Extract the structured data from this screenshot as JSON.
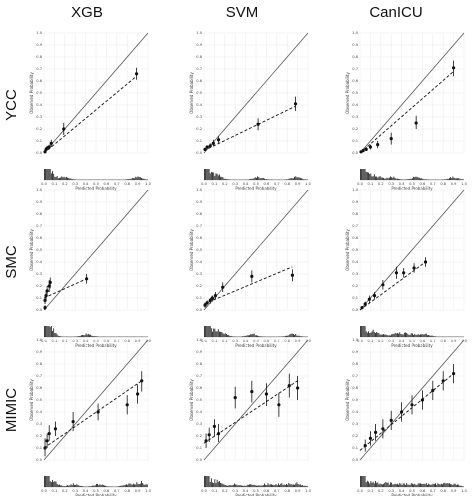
{
  "figure": {
    "columns": [
      "XGB",
      "SVM",
      "CanICU"
    ],
    "rows": [
      "YCC",
      "SMC",
      "MIMIC"
    ]
  },
  "chart_data": [
    {
      "type": "scatter",
      "model": "XGB",
      "cohort": "YCC",
      "xlabel": "Predicted Probability",
      "ylabel": "Observed Probability",
      "xlim": [
        0,
        1
      ],
      "ylim": [
        0,
        1
      ],
      "xticks": [
        "0.0",
        "0.1",
        "0.2",
        "0.3",
        "0.4",
        "0.5",
        "0.6",
        "0.7",
        "0.8",
        "0.9",
        "1.0"
      ],
      "yticks": [
        "0.0",
        "0.1",
        "0.2",
        "0.3",
        "0.4",
        "0.5",
        "0.6",
        "0.7",
        "0.8",
        "0.9",
        "1.0"
      ],
      "points": [
        {
          "x": 0.01,
          "y": 0.01,
          "lo": 0.0,
          "hi": 0.03
        },
        {
          "x": 0.02,
          "y": 0.03,
          "lo": 0.01,
          "hi": 0.05
        },
        {
          "x": 0.03,
          "y": 0.04,
          "lo": 0.02,
          "hi": 0.06
        },
        {
          "x": 0.05,
          "y": 0.05,
          "lo": 0.03,
          "hi": 0.07
        },
        {
          "x": 0.07,
          "y": 0.08,
          "lo": 0.05,
          "hi": 0.11
        },
        {
          "x": 0.19,
          "y": 0.2,
          "lo": 0.15,
          "hi": 0.25
        },
        {
          "x": 0.89,
          "y": 0.66,
          "lo": 0.61,
          "hi": 0.71
        }
      ],
      "fit_line": [
        [
          0.0,
          0.0
        ],
        [
          0.89,
          0.64
        ]
      ]
    },
    {
      "type": "scatter",
      "model": "SVM",
      "cohort": "YCC",
      "xlabel": "Predicted Probability",
      "ylabel": "Observed Probability",
      "xlim": [
        0,
        1
      ],
      "ylim": [
        0,
        1
      ],
      "xticks": [
        "0.0",
        "0.1",
        "0.2",
        "0.3",
        "0.4",
        "0.5",
        "0.6",
        "0.7",
        "0.8",
        "0.9",
        "1.0"
      ],
      "yticks": [
        "0.0",
        "0.1",
        "0.2",
        "0.3",
        "0.4",
        "0.5",
        "0.6",
        "0.7",
        "0.8",
        "0.9",
        "1.0"
      ],
      "points": [
        {
          "x": 0.01,
          "y": 0.03,
          "lo": 0.02,
          "hi": 0.04
        },
        {
          "x": 0.03,
          "y": 0.05,
          "lo": 0.04,
          "hi": 0.06
        },
        {
          "x": 0.06,
          "y": 0.06,
          "lo": 0.05,
          "hi": 0.08
        },
        {
          "x": 0.09,
          "y": 0.08,
          "lo": 0.06,
          "hi": 0.11
        },
        {
          "x": 0.14,
          "y": 0.11,
          "lo": 0.08,
          "hi": 0.14
        },
        {
          "x": 0.52,
          "y": 0.24,
          "lo": 0.19,
          "hi": 0.29
        },
        {
          "x": 0.88,
          "y": 0.41,
          "lo": 0.35,
          "hi": 0.47
        }
      ],
      "fit_line": [
        [
          0.0,
          0.02
        ],
        [
          0.88,
          0.39
        ]
      ]
    },
    {
      "type": "scatter",
      "model": "CanICU",
      "cohort": "YCC",
      "xlabel": "Predicted Probability",
      "ylabel": "Observed Probability",
      "xlim": [
        0,
        1
      ],
      "ylim": [
        0,
        1
      ],
      "xticks": [
        "0.0",
        "0.1",
        "0.2",
        "0.3",
        "0.4",
        "0.5",
        "0.6",
        "0.7",
        "0.8",
        "0.9",
        "1.0"
      ],
      "yticks": [
        "0.0",
        "0.1",
        "0.2",
        "0.3",
        "0.4",
        "0.5",
        "0.6",
        "0.7",
        "0.8",
        "0.9",
        "1.0"
      ],
      "points": [
        {
          "x": 0.01,
          "y": 0.01,
          "lo": 0.0,
          "hi": 0.02
        },
        {
          "x": 0.03,
          "y": 0.02,
          "lo": 0.01,
          "hi": 0.03
        },
        {
          "x": 0.06,
          "y": 0.03,
          "lo": 0.02,
          "hi": 0.05
        },
        {
          "x": 0.1,
          "y": 0.05,
          "lo": 0.03,
          "hi": 0.07
        },
        {
          "x": 0.17,
          "y": 0.07,
          "lo": 0.04,
          "hi": 0.1
        },
        {
          "x": 0.3,
          "y": 0.12,
          "lo": 0.07,
          "hi": 0.17
        },
        {
          "x": 0.54,
          "y": 0.25,
          "lo": 0.2,
          "hi": 0.31
        },
        {
          "x": 0.9,
          "y": 0.71,
          "lo": 0.64,
          "hi": 0.77
        }
      ],
      "fit_line": [
        [
          0.0,
          0.0
        ],
        [
          0.9,
          0.68
        ]
      ]
    },
    {
      "type": "scatter",
      "model": "XGB",
      "cohort": "SMC",
      "xlabel": "Predicted Probability",
      "ylabel": "Observed Probability",
      "xlim": [
        0,
        1
      ],
      "ylim": [
        0,
        1
      ],
      "xticks": [
        "0.0",
        "0.1",
        "0.2",
        "0.3",
        "0.4",
        "0.5",
        "0.6",
        "0.7",
        "0.8",
        "0.9",
        "1.0"
      ],
      "yticks": [
        "0.0",
        "0.1",
        "0.2",
        "0.3",
        "0.4",
        "0.5",
        "0.6",
        "0.7",
        "0.8",
        "0.9",
        "1.0"
      ],
      "points": [
        {
          "x": 0.01,
          "y": 0.02,
          "lo": 0.0,
          "hi": 0.04
        },
        {
          "x": 0.01,
          "y": 0.08,
          "lo": 0.05,
          "hi": 0.11
        },
        {
          "x": 0.02,
          "y": 0.12,
          "lo": 0.08,
          "hi": 0.16
        },
        {
          "x": 0.03,
          "y": 0.16,
          "lo": 0.12,
          "hi": 0.2
        },
        {
          "x": 0.05,
          "y": 0.2,
          "lo": 0.15,
          "hi": 0.25
        },
        {
          "x": 0.06,
          "y": 0.23,
          "lo": 0.18,
          "hi": 0.27
        },
        {
          "x": 0.41,
          "y": 0.26,
          "lo": 0.22,
          "hi": 0.3
        }
      ],
      "fit_line": [
        [
          0.0,
          0.1
        ],
        [
          0.41,
          0.26
        ]
      ]
    },
    {
      "type": "scatter",
      "model": "SVM",
      "cohort": "SMC",
      "xlabel": "Predicted Probability",
      "ylabel": "Observed Probability",
      "xlim": [
        0,
        1
      ],
      "ylim": [
        0,
        1
      ],
      "xticks": [
        "0.0",
        "0.1",
        "0.2",
        "0.3",
        "0.4",
        "0.5",
        "0.6",
        "0.7",
        "0.8",
        "0.9",
        "1.0"
      ],
      "yticks": [
        "0.0",
        "0.1",
        "0.2",
        "0.3",
        "0.4",
        "0.5",
        "0.6",
        "0.7",
        "0.8",
        "0.9",
        "1.0"
      ],
      "points": [
        {
          "x": 0.01,
          "y": 0.04,
          "lo": 0.02,
          "hi": 0.06
        },
        {
          "x": 0.03,
          "y": 0.06,
          "lo": 0.04,
          "hi": 0.08
        },
        {
          "x": 0.06,
          "y": 0.08,
          "lo": 0.05,
          "hi": 0.1
        },
        {
          "x": 0.08,
          "y": 0.1,
          "lo": 0.07,
          "hi": 0.12
        },
        {
          "x": 0.11,
          "y": 0.12,
          "lo": 0.09,
          "hi": 0.15
        },
        {
          "x": 0.18,
          "y": 0.19,
          "lo": 0.15,
          "hi": 0.23
        },
        {
          "x": 0.46,
          "y": 0.28,
          "lo": 0.23,
          "hi": 0.33
        },
        {
          "x": 0.85,
          "y": 0.29,
          "lo": 0.24,
          "hi": 0.34
        }
      ],
      "fit_line": [
        [
          0.0,
          0.05
        ],
        [
          0.85,
          0.36
        ]
      ]
    },
    {
      "type": "scatter",
      "model": "CanICU",
      "cohort": "SMC",
      "xlabel": "Predicted Probability",
      "ylabel": "Observed Probability",
      "xlim": [
        0,
        1
      ],
      "ylim": [
        0,
        1
      ],
      "xticks": [
        "0.0",
        "0.1",
        "0.2",
        "0.3",
        "0.4",
        "0.5",
        "0.6",
        "0.7",
        "0.8",
        "0.9",
        "1.0"
      ],
      "yticks": [
        "0.0",
        "0.1",
        "0.2",
        "0.3",
        "0.4",
        "0.5",
        "0.6",
        "0.7",
        "0.8",
        "0.9",
        "1.0"
      ],
      "points": [
        {
          "x": 0.02,
          "y": 0.02,
          "lo": 0.01,
          "hi": 0.03
        },
        {
          "x": 0.05,
          "y": 0.05,
          "lo": 0.03,
          "hi": 0.07
        },
        {
          "x": 0.09,
          "y": 0.09,
          "lo": 0.06,
          "hi": 0.12
        },
        {
          "x": 0.14,
          "y": 0.12,
          "lo": 0.09,
          "hi": 0.15
        },
        {
          "x": 0.22,
          "y": 0.21,
          "lo": 0.17,
          "hi": 0.25
        },
        {
          "x": 0.35,
          "y": 0.31,
          "lo": 0.26,
          "hi": 0.36
        },
        {
          "x": 0.42,
          "y": 0.31,
          "lo": 0.27,
          "hi": 0.35
        },
        {
          "x": 0.52,
          "y": 0.35,
          "lo": 0.31,
          "hi": 0.39
        },
        {
          "x": 0.63,
          "y": 0.4,
          "lo": 0.36,
          "hi": 0.44
        }
      ],
      "fit_line": [
        [
          0.0,
          0.0
        ],
        [
          0.63,
          0.4
        ]
      ]
    },
    {
      "type": "scatter",
      "model": "XGB",
      "cohort": "MIMIC",
      "xlabel": "Predicted Probability",
      "ylabel": "Observed Probability",
      "xlim": [
        0,
        1
      ],
      "ylim": [
        0,
        1
      ],
      "xticks": [
        "0.0",
        "0.1",
        "0.2",
        "0.3",
        "0.4",
        "0.5",
        "0.6",
        "0.7",
        "0.8",
        "0.9",
        "1.0"
      ],
      "yticks": [
        "0.0",
        "0.1",
        "0.2",
        "0.3",
        "0.4",
        "0.5",
        "0.6",
        "0.7",
        "0.8",
        "0.9",
        "1.0"
      ],
      "points": [
        {
          "x": 0.01,
          "y": 0.1,
          "lo": 0.03,
          "hi": 0.18
        },
        {
          "x": 0.03,
          "y": 0.16,
          "lo": 0.1,
          "hi": 0.22
        },
        {
          "x": 0.05,
          "y": 0.22,
          "lo": 0.16,
          "hi": 0.29
        },
        {
          "x": 0.11,
          "y": 0.26,
          "lo": 0.2,
          "hi": 0.32
        },
        {
          "x": 0.28,
          "y": 0.32,
          "lo": 0.24,
          "hi": 0.4
        },
        {
          "x": 0.52,
          "y": 0.4,
          "lo": 0.33,
          "hi": 0.47
        },
        {
          "x": 0.8,
          "y": 0.46,
          "lo": 0.38,
          "hi": 0.54
        },
        {
          "x": 0.9,
          "y": 0.55,
          "lo": 0.47,
          "hi": 0.63
        },
        {
          "x": 0.94,
          "y": 0.66,
          "lo": 0.57,
          "hi": 0.74
        }
      ],
      "fit_line": [
        [
          0.0,
          0.1
        ],
        [
          0.94,
          0.66
        ]
      ]
    },
    {
      "type": "scatter",
      "model": "SVM",
      "cohort": "MIMIC",
      "xlabel": "Predicted Probability",
      "ylabel": "Observed Probability",
      "xlim": [
        0,
        1
      ],
      "ylim": [
        0,
        1
      ],
      "xticks": [
        "0.0",
        "0.1",
        "0.2",
        "0.3",
        "0.4",
        "0.5",
        "0.6",
        "0.7",
        "0.8",
        "0.9",
        "1.0"
      ],
      "yticks": [
        "0.0",
        "0.1",
        "0.2",
        "0.3",
        "0.4",
        "0.5",
        "0.6",
        "0.7",
        "0.8",
        "0.9",
        "1.0"
      ],
      "points": [
        {
          "x": 0.02,
          "y": 0.16,
          "lo": 0.1,
          "hi": 0.22
        },
        {
          "x": 0.05,
          "y": 0.21,
          "lo": 0.15,
          "hi": 0.27
        },
        {
          "x": 0.1,
          "y": 0.28,
          "lo": 0.2,
          "hi": 0.34
        },
        {
          "x": 0.14,
          "y": 0.22,
          "lo": 0.15,
          "hi": 0.3
        },
        {
          "x": 0.3,
          "y": 0.52,
          "lo": 0.43,
          "hi": 0.61
        },
        {
          "x": 0.46,
          "y": 0.57,
          "lo": 0.48,
          "hi": 0.66
        },
        {
          "x": 0.6,
          "y": 0.55,
          "lo": 0.45,
          "hi": 0.64
        },
        {
          "x": 0.72,
          "y": 0.46,
          "lo": 0.36,
          "hi": 0.56
        },
        {
          "x": 0.82,
          "y": 0.62,
          "lo": 0.52,
          "hi": 0.72
        },
        {
          "x": 0.9,
          "y": 0.6,
          "lo": 0.5,
          "hi": 0.7
        }
      ],
      "fit_line": [
        [
          0.0,
          0.14
        ],
        [
          0.9,
          0.66
        ]
      ]
    },
    {
      "type": "scatter",
      "model": "CanICU",
      "cohort": "MIMIC",
      "xlabel": "Predicted Probability",
      "ylabel": "Observed Probability",
      "xlim": [
        0,
        1
      ],
      "ylim": [
        0,
        1
      ],
      "xticks": [
        "0.0",
        "0.1",
        "0.2",
        "0.3",
        "0.4",
        "0.5",
        "0.6",
        "0.7",
        "0.8",
        "0.9",
        "1.0"
      ],
      "yticks": [
        "0.0",
        "0.1",
        "0.2",
        "0.3",
        "0.4",
        "0.5",
        "0.6",
        "0.7",
        "0.8",
        "0.9",
        "1.0"
      ],
      "points": [
        {
          "x": 0.05,
          "y": 0.12,
          "lo": 0.07,
          "hi": 0.17
        },
        {
          "x": 0.1,
          "y": 0.18,
          "lo": 0.12,
          "hi": 0.24
        },
        {
          "x": 0.15,
          "y": 0.23,
          "lo": 0.16,
          "hi": 0.3
        },
        {
          "x": 0.22,
          "y": 0.26,
          "lo": 0.18,
          "hi": 0.34
        },
        {
          "x": 0.3,
          "y": 0.33,
          "lo": 0.25,
          "hi": 0.41
        },
        {
          "x": 0.4,
          "y": 0.4,
          "lo": 0.32,
          "hi": 0.48
        },
        {
          "x": 0.5,
          "y": 0.46,
          "lo": 0.38,
          "hi": 0.54
        },
        {
          "x": 0.6,
          "y": 0.5,
          "lo": 0.42,
          "hi": 0.58
        },
        {
          "x": 0.7,
          "y": 0.58,
          "lo": 0.5,
          "hi": 0.66
        },
        {
          "x": 0.8,
          "y": 0.66,
          "lo": 0.58,
          "hi": 0.74
        },
        {
          "x": 0.9,
          "y": 0.72,
          "lo": 0.64,
          "hi": 0.8
        }
      ],
      "fit_line": [
        [
          0.0,
          0.08
        ],
        [
          0.9,
          0.72
        ]
      ]
    }
  ]
}
